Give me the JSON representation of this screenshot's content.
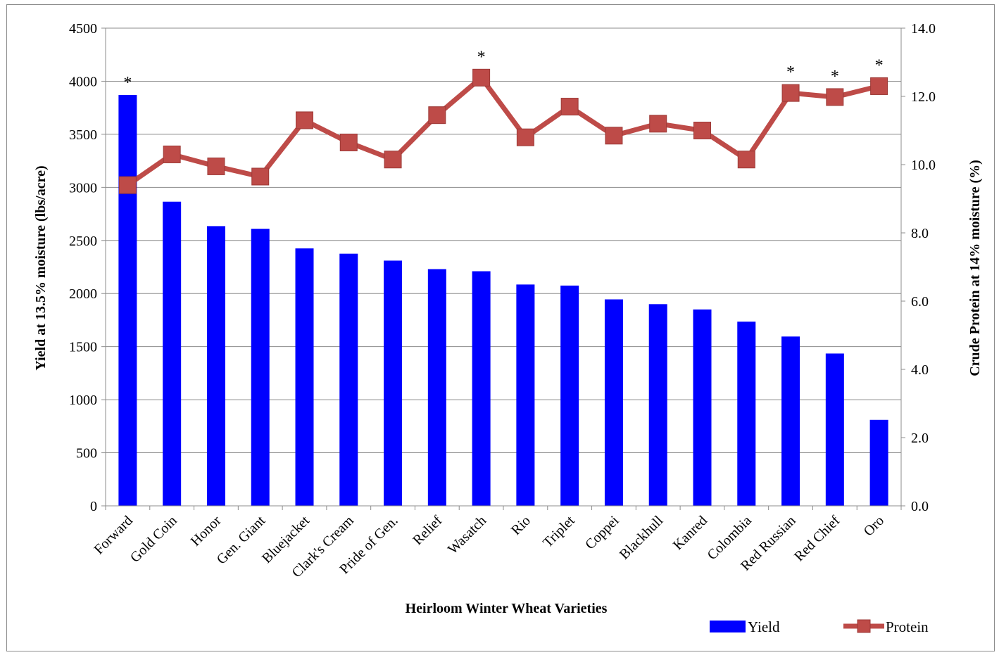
{
  "chart_data": {
    "type": "bar+line",
    "xlabel": "Heirloom Winter Wheat Varieties",
    "ylabel": "Yield at 13.5% moisture (lbs/acre)",
    "y2label": "Crude Protein at 14% moisture (%)",
    "categories": [
      "Forward",
      "Gold Coin",
      "Honor",
      "Gen. Giant",
      "Bluejacket",
      "Clark's Cream",
      "Pride of Gen.",
      "Relief",
      "Wasatch",
      "Rio",
      "Triplet",
      "Coppei",
      "Blackhull",
      "Kanred",
      "Colombia",
      "Red Russian",
      "Red Chief",
      "Oro"
    ],
    "series": [
      {
        "name": "Yield",
        "type": "bar",
        "axis": "left",
        "color": "#0000ff",
        "values": [
          3870,
          2865,
          2635,
          2610,
          2425,
          2375,
          2310,
          2230,
          2210,
          2085,
          2075,
          1945,
          1900,
          1850,
          1735,
          1595,
          1435,
          810
        ]
      },
      {
        "name": "Protein",
        "type": "line",
        "axis": "right",
        "color": "#be4b48",
        "values": [
          9.4,
          10.3,
          9.95,
          9.65,
          11.3,
          10.65,
          10.15,
          11.45,
          12.55,
          10.8,
          11.7,
          10.85,
          11.2,
          11.0,
          10.15,
          12.1,
          11.98,
          12.3
        ]
      }
    ],
    "ylim": [
      0,
      4500
    ],
    "yticks": [
      "0",
      "500",
      "1000",
      "1500",
      "2000",
      "2500",
      "3000",
      "3500",
      "4000",
      "4500"
    ],
    "y2lim": [
      0,
      14
    ],
    "y2ticks": [
      "0.0",
      "2.0",
      "4.0",
      "6.0",
      "8.0",
      "10.0",
      "12.0",
      "14.0"
    ],
    "annotations": [
      {
        "category": "Forward",
        "text": "*"
      },
      {
        "category": "Wasatch",
        "text": "*"
      },
      {
        "category": "Red Russian",
        "text": "*"
      },
      {
        "category": "Red Chief",
        "text": "*"
      },
      {
        "category": "Oro",
        "text": "*"
      }
    ],
    "grid": true,
    "legend": {
      "position": "bottom-right",
      "items": [
        "Yield",
        "Protein"
      ]
    }
  }
}
